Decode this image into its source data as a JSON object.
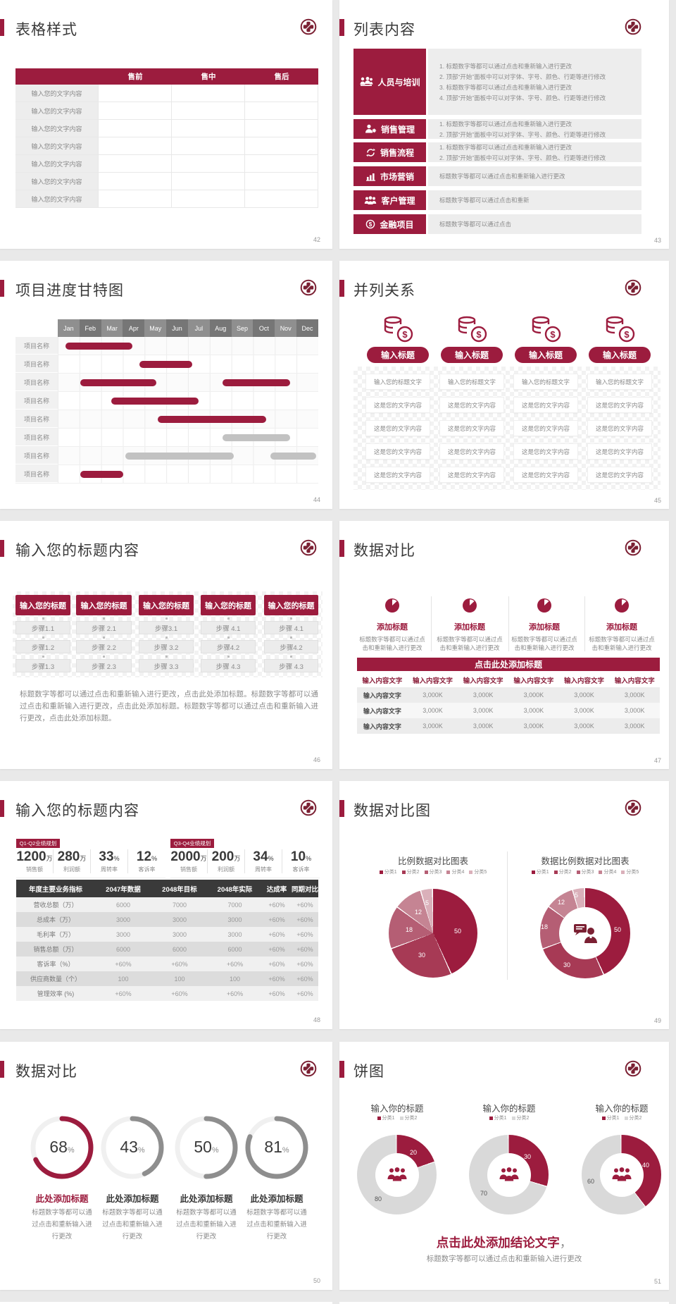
{
  "colors": {
    "accent": "#9c1c3e",
    "accent_dark": "#7b2033",
    "grey_bar": "#c2c2c2",
    "gauge_grey": "#8e8e8e",
    "donut_grey": "#d9d9d9"
  },
  "slides": {
    "s42": {
      "number": "42",
      "title": "表格样式",
      "table": {
        "headers": [
          "",
          "售前",
          "售中",
          "售后"
        ],
        "row_label": "输入您的文字内容"
      }
    },
    "s43": {
      "number": "43",
      "title": "列表内容",
      "items": [
        {
          "label": "人员与培训",
          "icon": "people-group-icon",
          "lines": [
            "1.  标题数字等都可以通过点击和重新输入进行更改",
            "2.  顶部“开始”面板中可以对字体、字号、颜色、行距等进行修改",
            "3.  标题数字等都可以通过点击和重新输入进行更改",
            "4.  顶部“开始”面板中可以对字体、字号、颜色、行距等进行修改"
          ]
        },
        {
          "label": "销售管理",
          "icon": "person-gear-icon",
          "lines": [
            "1.  标题数字等都可以通过点击和重新输入进行更改",
            "2.  顶部“开始”面板中可以对字体、字号、颜色、行距等进行修改"
          ]
        },
        {
          "label": "销售流程",
          "icon": "sync-arrows-icon",
          "lines": [
            "1.  标题数字等都可以通过点击和重新输入进行更改",
            "2.  顶部“开始”面板中可以对字体、字号、颜色、行距等进行修改"
          ]
        },
        {
          "label": "市场营销",
          "icon": "bar-chart-icon",
          "lines": [
            "标题数字等都可以通过点击和重新输入进行更改"
          ]
        },
        {
          "label": "客户管理",
          "icon": "customers-icon",
          "lines": [
            "标题数字等都可以通过点击和重新"
          ]
        },
        {
          "label": "金融项目",
          "icon": "finance-coin-icon",
          "lines": [
            "标题数字等都可以通过点击"
          ]
        }
      ]
    },
    "s44": {
      "number": "44",
      "title": "项目进度甘特图",
      "row_label": "项目名称",
      "months": [
        "Jan",
        "Feb",
        "Mar",
        "Apr",
        "May",
        "Jun",
        "Jul",
        "Aug",
        "Sep",
        "Oct",
        "Nov",
        "Dec"
      ],
      "chart_data": {
        "type": "gantt",
        "unit": "months",
        "range": [
          0,
          12
        ],
        "rows": [
          {
            "bars": [
              {
                "start": 0.35,
                "end": 3.45,
                "color": "#9c1c3e"
              }
            ]
          },
          {
            "bars": [
              {
                "start": 3.75,
                "end": 6.2,
                "color": "#9c1c3e"
              }
            ]
          },
          {
            "bars": [
              {
                "start": 1.05,
                "end": 4.55,
                "color": "#9c1c3e"
              },
              {
                "start": 7.6,
                "end": 10.7,
                "color": "#9c1c3e"
              }
            ]
          },
          {
            "bars": [
              {
                "start": 2.45,
                "end": 6.5,
                "color": "#9c1c3e"
              }
            ]
          },
          {
            "bars": [
              {
                "start": 4.6,
                "end": 9.6,
                "color": "#9c1c3e"
              }
            ]
          },
          {
            "bars": [
              {
                "start": 7.6,
                "end": 10.7,
                "color": "#c2c2c2"
              }
            ]
          },
          {
            "bars": [
              {
                "start": 3.1,
                "end": 8.1,
                "color": "#c2c2c2"
              },
              {
                "start": 9.8,
                "end": 11.9,
                "color": "#c2c2c2"
              }
            ]
          },
          {
            "bars": [
              {
                "start": 1.05,
                "end": 3.0,
                "color": "#9c1c3e"
              }
            ]
          }
        ]
      }
    },
    "s45": {
      "number": "45",
      "title": "并列关系",
      "pill": "输入标题",
      "rows": [
        "输入您的标题文字",
        "这是您的文字内容",
        "这是您的文字内容",
        "这是您的文字内容",
        "这是您的文字内容"
      ]
    },
    "s46": {
      "number": "46",
      "title": "输入您的标题内容",
      "header_label": "输入您的标题",
      "steps": [
        [
          "步骤1.1",
          "步骤1.2",
          "步骤1.3"
        ],
        [
          "步骤 2.1",
          "步骤 2.2",
          "步骤 2.3"
        ],
        [
          "步骤3.1",
          "步骤 3.2",
          "步骤 3.3"
        ],
        [
          "步骤 4.1",
          "步骤4.2",
          "步骤 4.3"
        ],
        [
          "步骤 4.1",
          "步骤4.2",
          "步骤 4.3"
        ]
      ],
      "paragraph": "标题数字等都可以通过点击和重新输入进行更改，点击此处添加标题。标题数字等都可以通过点击和重新输入进行更改，点击此处添加标题。标题数字等都可以通过点击和重新输入进行更改，点击此处添加标题。"
    },
    "s47": {
      "number": "47",
      "title": "数据对比",
      "card": {
        "heading": "添加标题",
        "line1": "标题数字等都可以通过点",
        "line2": "击和重新输入进行更改"
      },
      "banner": "点击此处添加标题",
      "table": {
        "header_cell": "输入内容文字",
        "row_label": "输入内容文字",
        "value": "3,000K"
      }
    },
    "s48": {
      "number": "48",
      "title": "输入您的标题内容",
      "groups": [
        {
          "badge": "Q1-Q2业绩规划",
          "stats": [
            {
              "value": "1200",
              "suffix": "万",
              "label": "销售额"
            },
            {
              "value": "280",
              "suffix": "万",
              "label": "利润额"
            },
            {
              "value": "33",
              "suffix": "%",
              "label": "周转率"
            },
            {
              "value": "12",
              "suffix": "%",
              "label": "客诉率"
            }
          ]
        },
        {
          "badge": "Q3-Q4业绩规划",
          "stats": [
            {
              "value": "2000",
              "suffix": "万",
              "label": "销售额"
            },
            {
              "value": "200",
              "suffix": "万",
              "label": "利润额"
            },
            {
              "value": "34",
              "suffix": "%",
              "label": "周转率"
            },
            {
              "value": "10",
              "suffix": "%",
              "label": "客诉率"
            }
          ]
        }
      ],
      "table": {
        "headers": [
          "年度主要业务指标",
          "2047年数据",
          "2048年目标",
          "2048年实际",
          "达成率",
          "同期对比"
        ],
        "rows": [
          [
            "营收总额（万）",
            "6000",
            "7000",
            "7000",
            "+60%",
            "+60%"
          ],
          [
            "总成本（万）",
            "3000",
            "3000",
            "3000",
            "+60%",
            "+60%"
          ],
          [
            "毛利率（万）",
            "3000",
            "3000",
            "3000",
            "+60%",
            "+60%"
          ],
          [
            "销售总额（万）",
            "6000",
            "6000",
            "6000",
            "+60%",
            "+60%"
          ],
          [
            "客诉率（%）",
            "+60%",
            "+60%",
            "+60%",
            "+60%",
            "+60%"
          ],
          [
            "供应商数量（个）",
            "100",
            "100",
            "100",
            "+60%",
            "+60%"
          ],
          [
            "管理效率 (%)",
            "+60%",
            "+60%",
            "+60%",
            "+60%",
            "+60%"
          ]
        ]
      }
    },
    "s49": {
      "number": "49",
      "title": "数据对比图",
      "charts": [
        {
          "type": "pie",
          "title": "比例数据对比图表",
          "legend": [
            "分类1",
            "分类2",
            "分类3",
            "分类4",
            "分类5"
          ],
          "values": [
            50,
            30,
            18,
            12,
            5
          ],
          "colors": [
            "#9c1c3e",
            "#a73a55",
            "#b55e74",
            "#c58493",
            "#dab0ba"
          ]
        },
        {
          "type": "donut",
          "title": "数据比例数据对比图表",
          "legend": [
            "分类1",
            "分类2",
            "分类3",
            "分类4",
            "分类5"
          ],
          "values": [
            50,
            30,
            18,
            12,
            5
          ],
          "colors": [
            "#9c1c3e",
            "#a73a55",
            "#b55e74",
            "#c58493",
            "#dab0ba"
          ]
        }
      ]
    },
    "s50": {
      "number": "50",
      "title": "数据对比",
      "percent_sign": "%",
      "card_title": "此处添加标题",
      "card_lines": [
        "标题数字等都可以通",
        "过点击和重新输入进",
        "行更改"
      ],
      "gauges": [
        {
          "value": 68,
          "color": "#9c1c3e"
        },
        {
          "value": 43,
          "color": "#8e8e8e"
        },
        {
          "value": 50,
          "color": "#8e8e8e"
        },
        {
          "value": 81,
          "color": "#8e8e8e"
        }
      ]
    },
    "s51": {
      "number": "51",
      "title": "饼图",
      "chart_title": "输入你的标题",
      "legend": [
        "分类1",
        "分类2"
      ],
      "donuts": [
        {
          "values": [
            20,
            80
          ],
          "colors": [
            "#9c1c3e",
            "#d9d9d9"
          ]
        },
        {
          "values": [
            30,
            70
          ],
          "colors": [
            "#9c1c3e",
            "#d9d9d9"
          ]
        },
        {
          "values": [
            40,
            60
          ],
          "colors": [
            "#9c1c3e",
            "#d9d9d9"
          ]
        }
      ],
      "conclusion": "点击此处添加结论文字",
      "conclusion_comma": "，",
      "footnote": "标题数字等都可以通过点击和重新输入进行更改"
    }
  }
}
